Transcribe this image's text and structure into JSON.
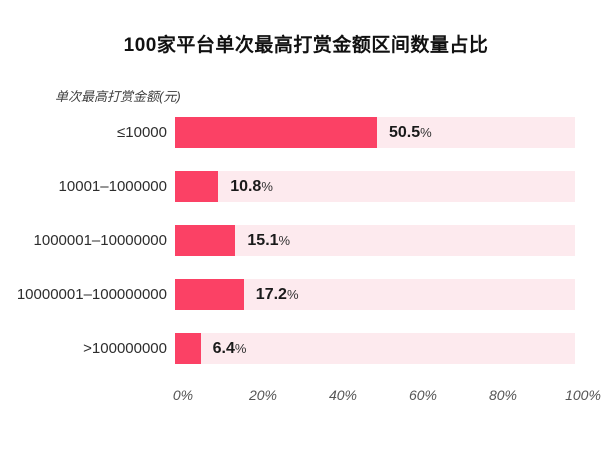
{
  "chart_data": {
    "type": "bar",
    "orientation": "horizontal",
    "title": "100家平台单次最高打赏金额区间数量占比",
    "axis_label": "单次最高打赏金额(元)",
    "categories": [
      "≤10000",
      "10001–1000000",
      "1000001–10000000",
      "10000001–100000000",
      ">100000000"
    ],
    "values": [
      50.5,
      10.8,
      15.1,
      17.2,
      6.4
    ],
    "value_labels": [
      "50.5",
      "10.8",
      "15.1",
      "17.2",
      "6.4"
    ],
    "percent_suffix": "%",
    "x_ticks": [
      "0%",
      "20%",
      "40%",
      "60%",
      "80%",
      "100%"
    ],
    "xlim": [
      0,
      100
    ],
    "grid": "off",
    "legend": "none",
    "bar_color": "#fb4165",
    "track_color": "#fdeaee"
  }
}
